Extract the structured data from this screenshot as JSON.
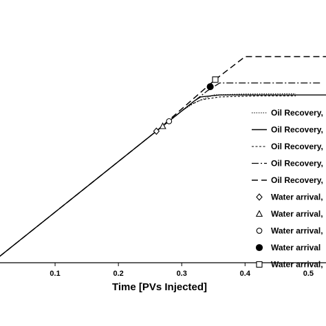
{
  "chart_data": {
    "type": "line",
    "xlabel": "Time [PVs Injected]",
    "ylabel": "",
    "xlim": [
      0,
      0.53
    ],
    "ylim": [
      0,
      1
    ],
    "x_ticks": [
      "0.1",
      "0.2",
      "0.3",
      "0.4",
      "0.5"
    ],
    "x_tick_values": [
      0.1,
      0.2,
      0.3,
      0.4,
      0.5
    ],
    "grid": false,
    "legend_position": "right",
    "series": [
      {
        "name": "Oil Recovery,",
        "style": "dotted",
        "x": [
          0,
          0.26,
          0.3,
          0.32,
          0.35,
          0.4,
          0.48
        ],
        "y": [
          0,
          0.556,
          0.641,
          0.676,
          0.709,
          0.713,
          0.714
        ]
      },
      {
        "name": "Oil Recovery,",
        "style": "solid",
        "x": [
          0,
          0.26,
          0.32,
          0.33,
          0.36,
          0.45,
          0.53
        ],
        "y": [
          0,
          0.556,
          0.684,
          0.701,
          0.709,
          0.709,
          0.709
        ]
      },
      {
        "name": "Oil Recovery,",
        "style": "dashed",
        "x": [
          0,
          0.26,
          0.31,
          0.33,
          0.36,
          0.42,
          0.48
        ],
        "y": [
          0,
          0.556,
          0.662,
          0.688,
          0.701,
          0.705,
          0.705
        ]
      },
      {
        "name": "Oil Recovery,",
        "style": "dashdot",
        "x": [
          0,
          0.26,
          0.34,
          0.36,
          0.42,
          0.52
        ],
        "y": [
          0,
          0.556,
          0.726,
          0.76,
          0.76,
          0.76
        ]
      },
      {
        "name": "Oil Recovery,",
        "style": "longdash",
        "x": [
          0,
          0.26,
          0.353,
          0.4,
          0.48,
          0.53
        ],
        "y": [
          0,
          0.556,
          0.774,
          0.871,
          0.871,
          0.871
        ]
      }
    ],
    "markers": [
      {
        "name": "Water arrival,",
        "symbol": "diamond",
        "x": 0.26,
        "y": 0.556
      },
      {
        "name": "Water arrival,",
        "symbol": "triangle",
        "x": 0.27,
        "y": 0.577
      },
      {
        "name": "Water arrival,",
        "symbol": "circle-open",
        "x": 0.28,
        "y": 0.598
      },
      {
        "name": "Water arrival",
        "symbol": "circle-filled",
        "x": 0.345,
        "y": 0.744
      },
      {
        "name": "Water arrival,",
        "symbol": "square-open",
        "x": 0.353,
        "y": 0.774
      }
    ]
  }
}
